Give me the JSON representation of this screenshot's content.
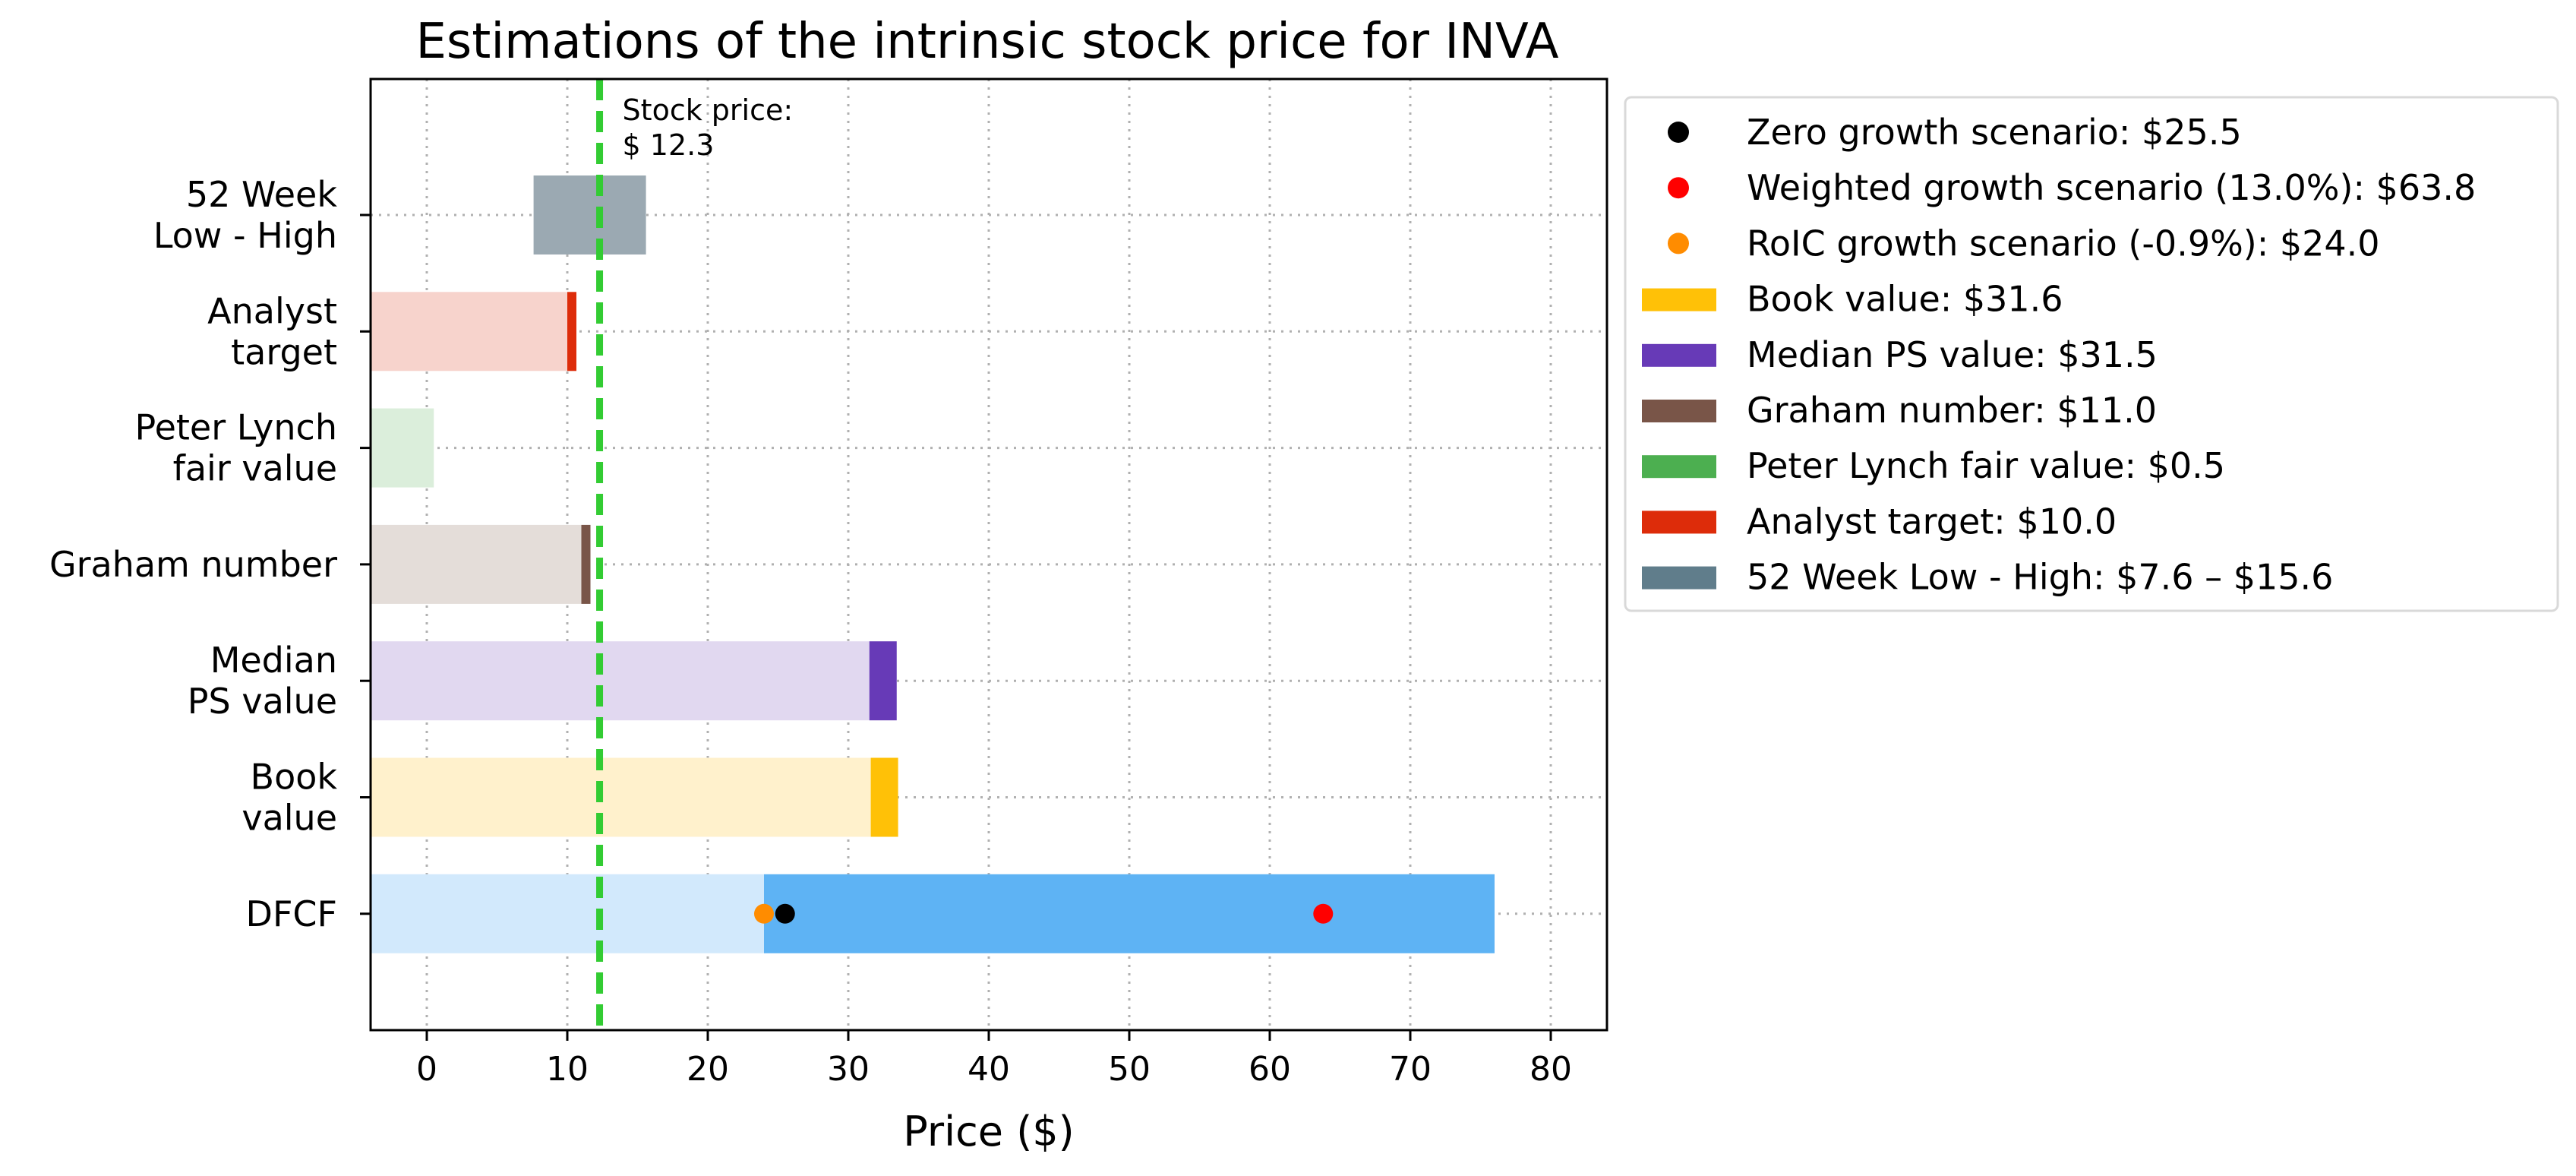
{
  "chart_data": {
    "type": "bar",
    "orientation": "horizontal",
    "title": "Estimations of the intrinsic stock price for INVA",
    "xlabel": "Price ($)",
    "ylabel": "",
    "xlim": [
      -4,
      84
    ],
    "xticks": [
      0,
      10,
      20,
      30,
      40,
      50,
      60,
      70,
      80
    ],
    "grid": true,
    "legend_position": "outside-right",
    "categories": [
      {
        "key": "low_high",
        "lines": [
          "52 Week",
          "Low - High"
        ]
      },
      {
        "key": "analyst",
        "lines": [
          "Analyst",
          "target"
        ]
      },
      {
        "key": "lynch",
        "lines": [
          "Peter Lynch",
          "fair value"
        ]
      },
      {
        "key": "graham",
        "lines": [
          "Graham number"
        ]
      },
      {
        "key": "ps",
        "lines": [
          "Median",
          "PS value"
        ]
      },
      {
        "key": "book",
        "lines": [
          "Book",
          "value"
        ]
      },
      {
        "key": "dcf",
        "lines": [
          "DFCF"
        ]
      }
    ],
    "bars": [
      {
        "category": "low_high",
        "range": [
          7.6,
          15.6
        ],
        "color": "#9ba9b2"
      },
      {
        "category": "analyst",
        "value": 10.0,
        "color": "#dd2c0a",
        "bg_color": "#f7d3cc"
      },
      {
        "category": "lynch",
        "value": 0.5,
        "color": "#4caf50",
        "bg_color": "#dbeedb"
      },
      {
        "category": "graham",
        "value": 11.0,
        "color": "#795548",
        "bg_color": "#e4ddd9"
      },
      {
        "category": "ps",
        "value": 31.5,
        "color": "#673ab7",
        "bg_color": "#e1d8f0"
      },
      {
        "category": "book",
        "value": 31.6,
        "color": "#ffc107",
        "bg_color": "#fff1cc"
      },
      {
        "category": "dcf",
        "range": [
          24.0,
          76.0
        ],
        "color": "#5eb3f4",
        "bg_color": "#d2e9fc"
      }
    ],
    "points": [
      {
        "category": "dcf",
        "x": 24.0,
        "color": "#ff8c00"
      },
      {
        "category": "dcf",
        "x": 25.5,
        "color": "#000000"
      },
      {
        "category": "dcf",
        "x": 63.8,
        "color": "#ff0000"
      }
    ],
    "stock_price": {
      "value": 12.3,
      "label_lines": [
        "Stock price:",
        "$ 12.3"
      ],
      "color": "#33cc33"
    },
    "legend": [
      {
        "marker": "dot",
        "color": "#000000",
        "label": "Zero growth scenario: $25.5"
      },
      {
        "marker": "dot",
        "color": "#ff0000",
        "label": "Weighted growth scenario (13.0%): $63.8"
      },
      {
        "marker": "dot",
        "color": "#ff8c00",
        "label": "RoIC growth scenario (-0.9%): $24.0"
      },
      {
        "marker": "patch",
        "color": "#ffc107",
        "label": "Book value: $31.6"
      },
      {
        "marker": "patch",
        "color": "#673ab7",
        "label": "Median PS value: $31.5"
      },
      {
        "marker": "patch",
        "color": "#795548",
        "label": "Graham number: $11.0"
      },
      {
        "marker": "patch",
        "color": "#4caf50",
        "label": "Peter Lynch fair value: $0.5"
      },
      {
        "marker": "patch",
        "color": "#dd2c0a",
        "label": "Analyst target: $10.0"
      },
      {
        "marker": "patch",
        "color": "#607d8b",
        "label": "52 Week Low - High: $7.6 – $15.6"
      }
    ]
  }
}
